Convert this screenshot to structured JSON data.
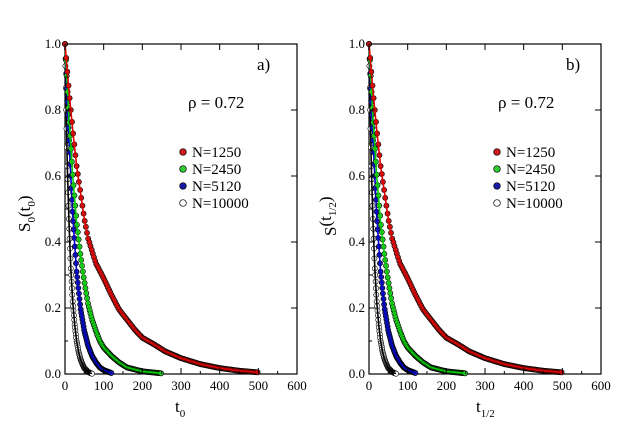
{
  "chart_data": [
    {
      "type": "scatter",
      "panel_label": "a)",
      "annotation": "ρ = 0.72",
      "xlabel": "t",
      "xlabel_sub": "0",
      "ylabel": "S",
      "ylabel_sub": "0",
      "ylabel_paren_open": "(t",
      "ylabel_paren_sub": "0",
      "ylabel_paren_close": ")",
      "xlim": [
        0,
        600
      ],
      "ylim": [
        0,
        1.0
      ],
      "xticks": [
        0,
        100,
        200,
        300,
        400,
        500,
        600
      ],
      "yticks": [
        0.0,
        0.2,
        0.4,
        0.6,
        0.8,
        1.0
      ],
      "legend_position": "right-middle",
      "series": [
        {
          "name": "N=1250",
          "marker_color": "#cc1a1a",
          "fit_color": "#e00000",
          "x": [
            0,
            10,
            20,
            30,
            40,
            50,
            60,
            80,
            100,
            120,
            140,
            160,
            180,
            200,
            230,
            260,
            300,
            350,
            400,
            450,
            500
          ],
          "y": [
            1.0,
            0.86,
            0.74,
            0.63,
            0.55,
            0.47,
            0.41,
            0.335,
            0.29,
            0.24,
            0.195,
            0.165,
            0.135,
            0.11,
            0.09,
            0.068,
            0.048,
            0.03,
            0.018,
            0.01,
            0.005
          ]
        },
        {
          "name": "N=2450",
          "marker_color": "#33cc33",
          "fit_color": "#00cc00",
          "x": [
            0,
            10,
            20,
            30,
            40,
            50,
            60,
            70,
            80,
            90,
            100,
            120,
            140,
            160,
            200,
            250
          ],
          "y": [
            1.0,
            0.78,
            0.6,
            0.46,
            0.36,
            0.28,
            0.21,
            0.165,
            0.13,
            0.1,
            0.08,
            0.055,
            0.035,
            0.02,
            0.008,
            0.002
          ]
        },
        {
          "name": "N=5120",
          "marker_color": "#1a1aa6",
          "fit_color": "#0000cc",
          "x": [
            0,
            5,
            10,
            20,
            30,
            40,
            50,
            60,
            70,
            80,
            90,
            100,
            120
          ],
          "y": [
            1.0,
            0.85,
            0.72,
            0.48,
            0.31,
            0.2,
            0.13,
            0.085,
            0.055,
            0.035,
            0.02,
            0.012,
            0.003
          ]
        },
        {
          "name": "N=10000",
          "marker_color": "#ffffff",
          "fit_color": "#000000",
          "x": [
            0,
            3,
            6,
            10,
            15,
            20,
            25,
            30,
            35,
            40,
            45,
            50,
            60,
            70
          ],
          "y": [
            1.0,
            0.8,
            0.63,
            0.47,
            0.32,
            0.22,
            0.15,
            0.1,
            0.068,
            0.045,
            0.03,
            0.018,
            0.006,
            0.001
          ]
        }
      ]
    },
    {
      "type": "scatter",
      "panel_label": "b)",
      "annotation": "ρ = 0.72",
      "xlabel": "t",
      "xlabel_sub": "1/2",
      "ylabel": "S",
      "ylabel_sub": "",
      "ylabel_paren_open": "(t",
      "ylabel_paren_sub": "1/2",
      "ylabel_paren_close": ")",
      "xlim": [
        0,
        600
      ],
      "ylim": [
        0,
        1.0
      ],
      "xticks": [
        0,
        100,
        200,
        300,
        400,
        500,
        600
      ],
      "yticks": [
        0.0,
        0.2,
        0.4,
        0.6,
        0.8,
        1.0
      ],
      "legend_position": "right-middle",
      "series": [
        {
          "name": "N=1250",
          "marker_color": "#cc1a1a",
          "fit_color": "#e00000",
          "x": [
            0,
            10,
            20,
            30,
            40,
            50,
            60,
            80,
            100,
            120,
            140,
            160,
            180,
            200,
            230,
            260,
            300,
            350,
            400,
            450,
            500
          ],
          "y": [
            1.0,
            0.86,
            0.74,
            0.63,
            0.55,
            0.47,
            0.41,
            0.335,
            0.29,
            0.24,
            0.195,
            0.165,
            0.135,
            0.11,
            0.09,
            0.068,
            0.048,
            0.03,
            0.018,
            0.01,
            0.005
          ]
        },
        {
          "name": "N=2450",
          "marker_color": "#33cc33",
          "fit_color": "#00cc00",
          "x": [
            0,
            10,
            20,
            30,
            40,
            50,
            60,
            70,
            80,
            90,
            100,
            120,
            140,
            160,
            200,
            250
          ],
          "y": [
            1.0,
            0.78,
            0.6,
            0.46,
            0.36,
            0.28,
            0.21,
            0.165,
            0.13,
            0.1,
            0.08,
            0.055,
            0.035,
            0.02,
            0.008,
            0.002
          ]
        },
        {
          "name": "N=5120",
          "marker_color": "#1a1aa6",
          "fit_color": "#0000cc",
          "x": [
            0,
            5,
            10,
            20,
            30,
            40,
            50,
            60,
            70,
            80,
            90,
            100,
            120
          ],
          "y": [
            1.0,
            0.85,
            0.72,
            0.48,
            0.31,
            0.2,
            0.13,
            0.085,
            0.055,
            0.035,
            0.02,
            0.012,
            0.003
          ]
        },
        {
          "name": "N=10000",
          "marker_color": "#ffffff",
          "fit_color": "#000000",
          "x": [
            0,
            3,
            6,
            10,
            15,
            20,
            25,
            30,
            35,
            40,
            45,
            50,
            60,
            70
          ],
          "y": [
            1.0,
            0.8,
            0.63,
            0.47,
            0.32,
            0.22,
            0.15,
            0.1,
            0.068,
            0.045,
            0.03,
            0.018,
            0.006,
            0.001
          ]
        }
      ]
    }
  ]
}
